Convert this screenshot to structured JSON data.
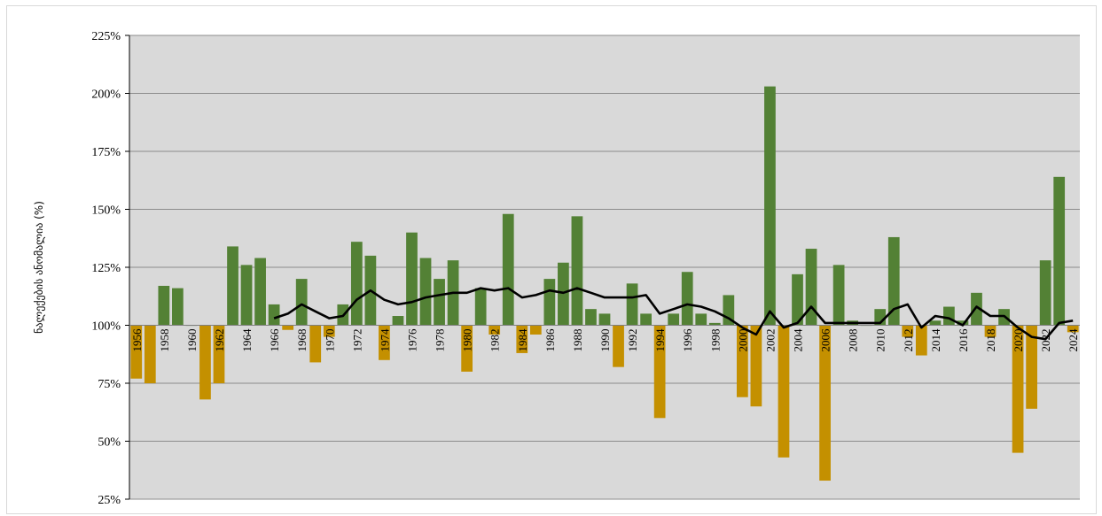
{
  "chart_data": {
    "type": "bar",
    "title": "",
    "ylabel": "ნალექების ანომალია (%)",
    "xlabel": "",
    "baseline": 100,
    "ylim": [
      25,
      225
    ],
    "yticks": [
      25,
      50,
      75,
      100,
      125,
      150,
      175,
      200,
      225
    ],
    "ytick_labels": [
      "25%",
      "50%",
      "75%",
      "100%",
      "125%",
      "150%",
      "175%",
      "200%",
      "225%"
    ],
    "xtick_labels": [
      "1956",
      "1958",
      "1960",
      "1962",
      "1964",
      "1966",
      "1968",
      "1970",
      "1972",
      "1974",
      "1976",
      "1978",
      "1980",
      "1982",
      "1984",
      "1986",
      "1988",
      "1990",
      "1992",
      "1994",
      "1996",
      "1998",
      "2000",
      "2002",
      "2004",
      "2006",
      "2008",
      "2010",
      "2012",
      "2014",
      "2016",
      "2018",
      "2020",
      "2022",
      "2024"
    ],
    "grid": true,
    "colors": {
      "above": "#538135",
      "below": "#C49000",
      "line": "#000000",
      "plot_bg": "#D9D9D9",
      "grid": "#8C8C8C"
    },
    "years": [
      1956,
      1957,
      1958,
      1959,
      1960,
      1961,
      1962,
      1963,
      1964,
      1965,
      1966,
      1967,
      1968,
      1969,
      1970,
      1971,
      1972,
      1973,
      1974,
      1975,
      1976,
      1977,
      1978,
      1979,
      1980,
      1981,
      1982,
      1983,
      1984,
      1985,
      1986,
      1987,
      1988,
      1989,
      1990,
      1991,
      1992,
      1993,
      1994,
      1995,
      1996,
      1997,
      1998,
      1999,
      2000,
      2001,
      2002,
      2003,
      2004,
      2005,
      2006,
      2007,
      2008,
      2009,
      2010,
      2011,
      2012,
      2013,
      2014,
      2015,
      2016,
      2017,
      2018,
      2019,
      2020,
      2021,
      2022,
      2023,
      2024
    ],
    "values": [
      77,
      75,
      117,
      116,
      100,
      68,
      75,
      134,
      126,
      129,
      109,
      98,
      120,
      84,
      95,
      109,
      136,
      130,
      85,
      104,
      140,
      129,
      120,
      128,
      80,
      116,
      96,
      148,
      88,
      96,
      120,
      127,
      147,
      107,
      105,
      82,
      118,
      105,
      60,
      105,
      123,
      105,
      101,
      113,
      69,
      65,
      203,
      43,
      122,
      133,
      33,
      126,
      102,
      100,
      107,
      138,
      95,
      87,
      102,
      108,
      102,
      114,
      95,
      107,
      45,
      64,
      128,
      164,
      97
    ],
    "moving_average": {
      "years": [
        1966,
        1967,
        1968,
        1969,
        1970,
        1971,
        1972,
        1973,
        1974,
        1975,
        1976,
        1977,
        1978,
        1979,
        1980,
        1981,
        1982,
        1983,
        1984,
        1985,
        1986,
        1987,
        1988,
        1989,
        1990,
        1991,
        1992,
        1993,
        1994,
        1995,
        1996,
        1997,
        1998,
        1999,
        2000,
        2001,
        2002,
        2003,
        2004,
        2005,
        2006,
        2007,
        2008,
        2009,
        2010,
        2011,
        2012,
        2013,
        2014,
        2015,
        2016,
        2017,
        2018,
        2019,
        2020,
        2021,
        2022,
        2023,
        2024
      ],
      "values": [
        103,
        105,
        109,
        106,
        103,
        104,
        111,
        115,
        111,
        109,
        110,
        112,
        113,
        114,
        114,
        116,
        115,
        116,
        112,
        113,
        115,
        114,
        116,
        114,
        112,
        112,
        112,
        113,
        105,
        107,
        109,
        108,
        106,
        103,
        99,
        96,
        106,
        99,
        101,
        108,
        101,
        101,
        101,
        101,
        101,
        107,
        109,
        99,
        104,
        103,
        100,
        108,
        104,
        104,
        99,
        95,
        94,
        101,
        102
      ]
    }
  }
}
